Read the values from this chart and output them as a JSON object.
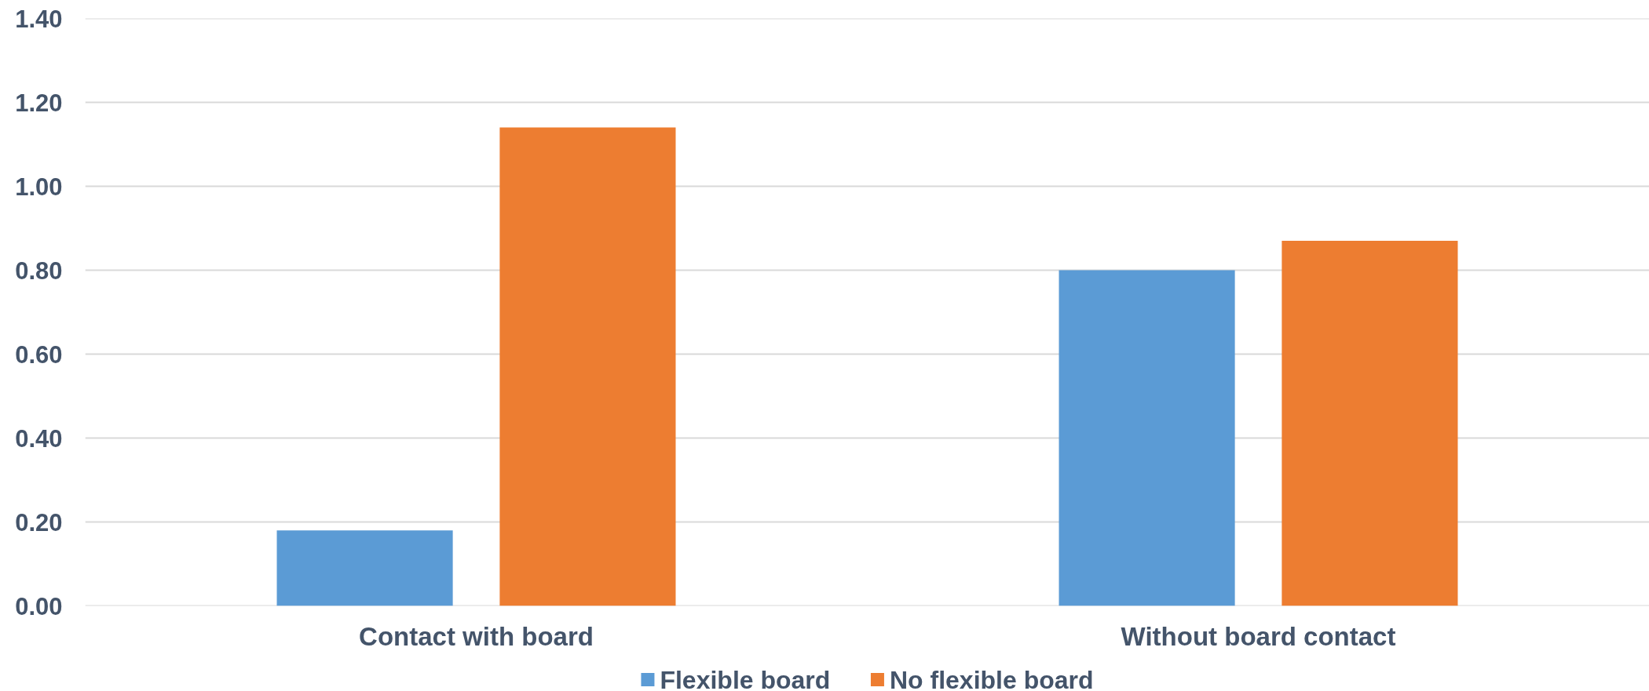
{
  "chart_data": {
    "type": "bar",
    "categories": [
      "Contact with board",
      "Without board contact"
    ],
    "series": [
      {
        "name": "Flexible board",
        "color": "#5b9bd5",
        "values": [
          0.18,
          0.8
        ]
      },
      {
        "name": "No flexible board",
        "color": "#ed7d31",
        "values": [
          1.14,
          0.87
        ]
      }
    ],
    "ylim": [
      0,
      1.4
    ],
    "yticks": [
      {
        "value": 0,
        "label": "0.00"
      },
      {
        "value": 0.2,
        "label": "0.20"
      },
      {
        "value": 0.4,
        "label": "0.40"
      },
      {
        "value": 0.6,
        "label": "0.60"
      },
      {
        "value": 0.8,
        "label": "0.80"
      },
      {
        "value": 1.0,
        "label": "1.00"
      },
      {
        "value": 1.2,
        "label": "1.20"
      },
      {
        "value": 1.4,
        "label": "1.40"
      }
    ],
    "grid": "y",
    "legend": "bottom"
  }
}
